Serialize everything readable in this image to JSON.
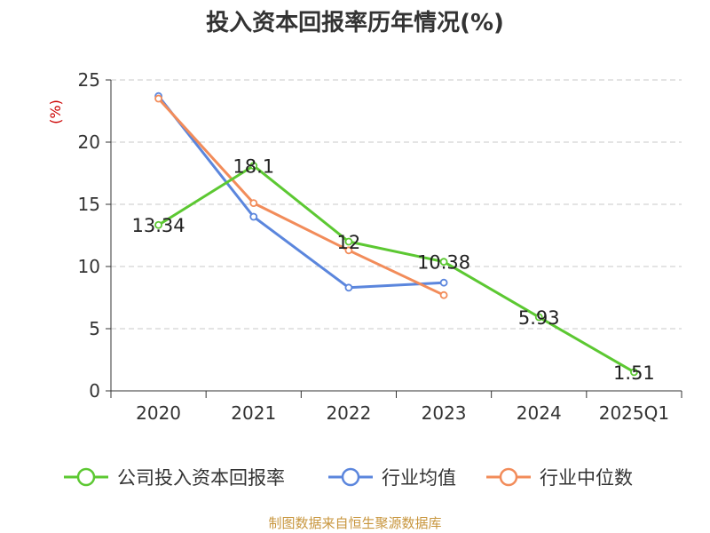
{
  "chart_data": {
    "type": "line",
    "title": "投入资本回报率历年情况(%)",
    "ylabel": "(%)",
    "xlabel": "",
    "ylim": [
      0,
      25
    ],
    "yticks": [
      0,
      5,
      10,
      15,
      20,
      25
    ],
    "grid": true,
    "legend_position": "bottom",
    "categories": [
      "2020",
      "2021",
      "2022",
      "2023",
      "2024",
      "2025Q1"
    ],
    "series": [
      {
        "name": "公司投入资本回报率",
        "color": "#5cc832",
        "values": [
          13.34,
          18.1,
          12,
          10.38,
          5.93,
          1.51
        ],
        "labels": [
          "13.34",
          "18.1",
          "12",
          "10.38",
          "5.93",
          "1.51"
        ]
      },
      {
        "name": "行业均值",
        "color": "#5b86dd",
        "values": [
          23.7,
          14.0,
          8.3,
          8.7,
          null,
          null
        ]
      },
      {
        "name": "行业中位数",
        "color": "#f28c5a",
        "values": [
          23.5,
          15.1,
          11.3,
          7.7,
          null,
          null
        ]
      }
    ]
  },
  "source_text": "制图数据来自恒生聚源数据库"
}
